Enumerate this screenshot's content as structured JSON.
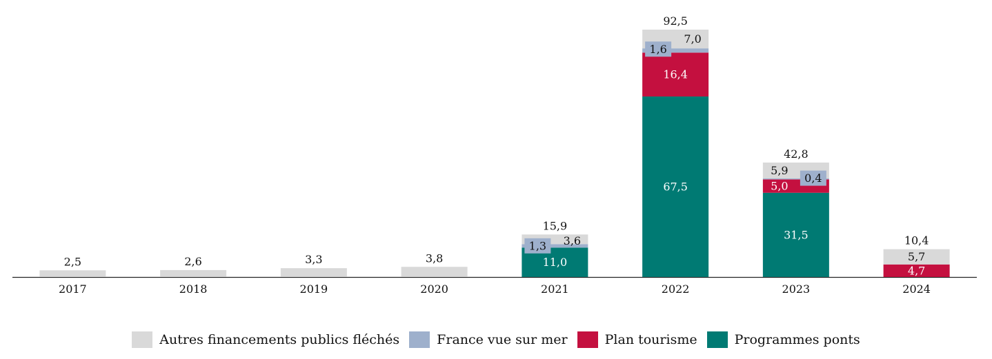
{
  "chart_data": {
    "type": "bar",
    "stacked": true,
    "categories": [
      "2017",
      "2018",
      "2019",
      "2020",
      "2021",
      "2022",
      "2023",
      "2024"
    ],
    "series": [
      {
        "name": "Programmes ponts",
        "color": "#007a73",
        "label_color": "#ffffff",
        "values": [
          0,
          0,
          0,
          0,
          11.0,
          67.5,
          31.5,
          0
        ],
        "labels": [
          "",
          "",
          "",
          "",
          "11,0",
          "67,5",
          "31,5",
          ""
        ]
      },
      {
        "name": "Plan tourisme",
        "color": "#c4103f",
        "label_color": "#ffffff",
        "values": [
          0,
          0,
          0,
          0,
          0,
          16.4,
          5.0,
          4.7
        ],
        "labels": [
          "",
          "",
          "",
          "",
          "",
          "16,4",
          "5,0",
          "4,7"
        ]
      },
      {
        "name": "France vue sur mer",
        "color": "#9eb0cc",
        "label_color": "#111111",
        "values": [
          0,
          0,
          0,
          0,
          1.3,
          1.6,
          0.4,
          0
        ],
        "labels": [
          "",
          "",
          "",
          "",
          "1,3",
          "1,6",
          "0,4",
          ""
        ]
      },
      {
        "name": "Autres financements publics fléchés",
        "color": "#d9d9d9",
        "label_color": "#111111",
        "values": [
          2.5,
          2.6,
          3.3,
          3.8,
          3.6,
          7.0,
          5.9,
          5.7
        ],
        "labels": [
          "",
          "",
          "",
          "",
          "3,6",
          "7,0",
          "5,9",
          "5,7"
        ]
      }
    ],
    "totals": [
      2.5,
      2.6,
      3.3,
      3.8,
      15.9,
      92.5,
      42.8,
      10.4
    ],
    "total_labels": [
      "2,5",
      "2,6",
      "3,3",
      "3,8",
      "15,9",
      "92,5",
      "42,8",
      "10,4"
    ],
    "legend_order": [
      "Autres financements publics fléchés",
      "France vue sur mer",
      "Plan tourisme",
      "Programmes ponts"
    ],
    "legend_position": "bottom",
    "ylim": [
      0,
      92.5
    ],
    "grid": false,
    "title": "",
    "xlabel": "",
    "ylabel": ""
  }
}
